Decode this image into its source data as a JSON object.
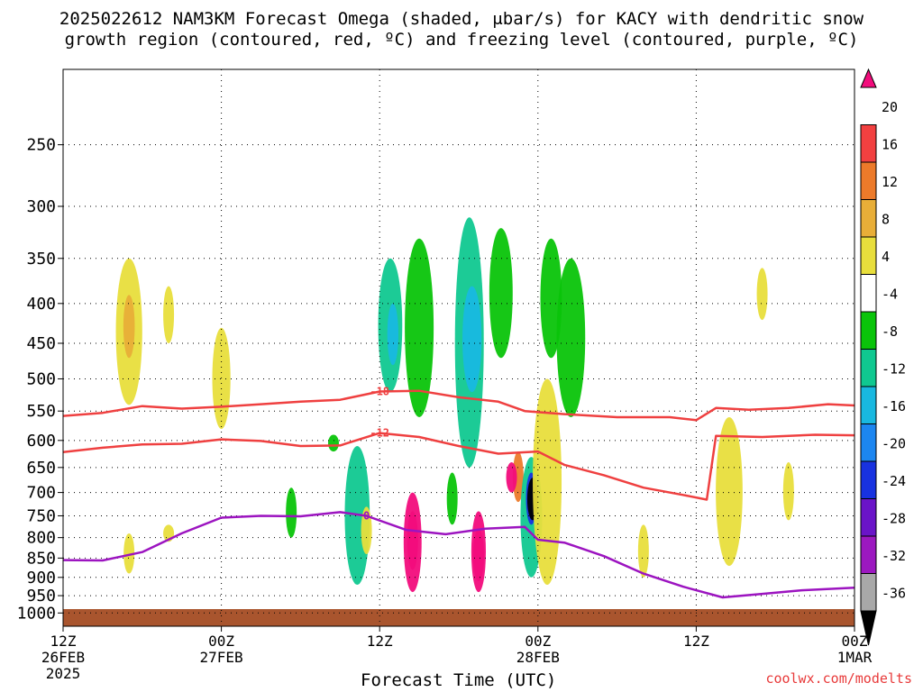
{
  "title_line1": "2025022612 NAM3KM Forecast Omega (shaded, μbar/s) for KACY with dendritic snow",
  "title_line2": "growth region (contoured, red, ºC) and freezing level (contoured, purple, ºC)",
  "x_axis_title": "Forecast Time (UTC)",
  "credit": "coolwx.com/modelts",
  "chart_data": {
    "type": "heatmap",
    "title": "2025022612 NAM3KM Forecast Omega (shaded, μbar/s) for KACY with dendritic snow growth region (contoured, red, ºC) and freezing level (contoured, purple, ºC)",
    "xlabel": "Forecast Time (UTC)",
    "ylabel": "",
    "x_range_hours": [
      0,
      60
    ],
    "x_ticks": [
      {
        "hour": 0,
        "lines": [
          "12Z",
          "26FEB",
          "2025"
        ]
      },
      {
        "hour": 12,
        "lines": [
          "00Z",
          "27FEB"
        ]
      },
      {
        "hour": 24,
        "lines": [
          "12Z"
        ]
      },
      {
        "hour": 36,
        "lines": [
          "00Z",
          "28FEB"
        ]
      },
      {
        "hour": 48,
        "lines": [
          "12Z"
        ]
      },
      {
        "hour": 60,
        "lines": [
          "00Z",
          "1MAR"
        ]
      }
    ],
    "y_scale": "log-pressure (hPa), inverted",
    "y_range_hpa": [
      1040,
      200
    ],
    "y_ticks": [
      250,
      300,
      350,
      400,
      450,
      500,
      550,
      600,
      650,
      700,
      750,
      800,
      850,
      900,
      950,
      1000
    ],
    "grid": true,
    "colorbar": {
      "units": "μbar/s",
      "labels": [
        20,
        16,
        12,
        8,
        4,
        -4,
        -8,
        -12,
        -16,
        -20,
        -24,
        -28,
        -32,
        -36
      ],
      "colors": [
        "#f20c7c",
        "#f24040",
        "#ec7a2a",
        "#e8ae38",
        "#e8de3c",
        "#ffffff",
        "#0ac40a",
        "#10c890",
        "#18b8e0",
        "#1c86f0",
        "#1832e0",
        "#6a14c8",
        "#9c18c0",
        "#a8a8a8",
        "#000000"
      ]
    },
    "omega_cells": [
      {
        "hour": 5.0,
        "p_top": 350,
        "p_bot": 540,
        "value": 6
      },
      {
        "hour": 5.0,
        "p_top": 390,
        "p_bot": 470,
        "value": 9
      },
      {
        "hour": 5.0,
        "p_top": 790,
        "p_bot": 890,
        "value": 5
      },
      {
        "hour": 8.0,
        "p_top": 380,
        "p_bot": 450,
        "value": 5
      },
      {
        "hour": 8.0,
        "p_top": 770,
        "p_bot": 810,
        "value": 5
      },
      {
        "hour": 12.0,
        "p_top": 430,
        "p_bot": 580,
        "value": 5
      },
      {
        "hour": 17.3,
        "p_top": 690,
        "p_bot": 800,
        "value": -6
      },
      {
        "hour": 20.5,
        "p_top": 590,
        "p_bot": 620,
        "value": -6
      },
      {
        "hour": 22.3,
        "p_top": 610,
        "p_bot": 920,
        "value": -9
      },
      {
        "hour": 23.0,
        "p_top": 730,
        "p_bot": 840,
        "value": 5
      },
      {
        "hour": 24.8,
        "p_top": 350,
        "p_bot": 520,
        "value": -10
      },
      {
        "hour": 25.0,
        "p_top": 400,
        "p_bot": 480,
        "value": -16
      },
      {
        "hour": 27.0,
        "p_top": 330,
        "p_bot": 560,
        "value": -6
      },
      {
        "hour": 26.5,
        "p_top": 700,
        "p_bot": 940,
        "value": 20
      },
      {
        "hour": 26.5,
        "p_top": 740,
        "p_bot": 880,
        "value": 24
      },
      {
        "hour": 29.5,
        "p_top": 660,
        "p_bot": 770,
        "value": -6
      },
      {
        "hour": 30.8,
        "p_top": 310,
        "p_bot": 650,
        "value": -10
      },
      {
        "hour": 31.0,
        "p_top": 380,
        "p_bot": 520,
        "value": -14
      },
      {
        "hour": 31.5,
        "p_top": 740,
        "p_bot": 940,
        "value": 20
      },
      {
        "hour": 31.5,
        "p_top": 780,
        "p_bot": 910,
        "value": 24
      },
      {
        "hour": 33.2,
        "p_top": 320,
        "p_bot": 470,
        "value": -6
      },
      {
        "hour": 34.5,
        "p_top": 620,
        "p_bot": 720,
        "value": 14
      },
      {
        "hour": 34.0,
        "p_top": 640,
        "p_bot": 700,
        "value": 22
      },
      {
        "hour": 35.5,
        "p_top": 630,
        "p_bot": 900,
        "value": -12
      },
      {
        "hour": 35.5,
        "p_top": 660,
        "p_bot": 770,
        "value": -24
      },
      {
        "hour": 35.6,
        "p_top": 670,
        "p_bot": 760,
        "value": -38
      },
      {
        "hour": 36.7,
        "p_top": 500,
        "p_bot": 920,
        "value": 6
      },
      {
        "hour": 37.0,
        "p_top": 330,
        "p_bot": 470,
        "value": -7
      },
      {
        "hour": 38.5,
        "p_top": 350,
        "p_bot": 560,
        "value": -8
      },
      {
        "hour": 44.0,
        "p_top": 770,
        "p_bot": 900,
        "value": 5
      },
      {
        "hour": 50.5,
        "p_top": 560,
        "p_bot": 870,
        "value": 5
      },
      {
        "hour": 55.0,
        "p_top": 640,
        "p_bot": 760,
        "value": 5
      },
      {
        "hour": 53.0,
        "p_top": 360,
        "p_bot": 420,
        "value": 5
      }
    ],
    "contours": [
      {
        "label": "-18",
        "color": "#ef4040",
        "series": [
          [
            0,
            558
          ],
          [
            3,
            553
          ],
          [
            6,
            542
          ],
          [
            9,
            546
          ],
          [
            12,
            543
          ],
          [
            15,
            539
          ],
          [
            18,
            535
          ],
          [
            21,
            532
          ],
          [
            24,
            519
          ],
          [
            27,
            518
          ],
          [
            30,
            528
          ],
          [
            33,
            535
          ],
          [
            35,
            550
          ],
          [
            38,
            555
          ],
          [
            42,
            560
          ],
          [
            46,
            560
          ],
          [
            48,
            565
          ],
          [
            49.5,
            545
          ],
          [
            52,
            548
          ],
          [
            55,
            545
          ],
          [
            58,
            539
          ],
          [
            60,
            541
          ]
        ]
      },
      {
        "label": "-12",
        "color": "#ef4040",
        "series": [
          [
            0,
            621
          ],
          [
            3,
            613
          ],
          [
            6,
            607
          ],
          [
            9,
            606
          ],
          [
            12,
            598
          ],
          [
            15,
            601
          ],
          [
            18,
            610
          ],
          [
            21,
            609
          ],
          [
            24,
            587
          ],
          [
            27,
            594
          ],
          [
            30,
            610
          ],
          [
            33,
            624
          ],
          [
            36,
            620
          ],
          [
            38,
            645
          ],
          [
            41,
            665
          ],
          [
            44,
            690
          ],
          [
            47,
            705
          ],
          [
            48.8,
            715
          ],
          [
            49.5,
            592
          ],
          [
            53,
            594
          ],
          [
            57,
            590
          ],
          [
            60,
            591
          ]
        ]
      },
      {
        "label": "0",
        "color": "#9c14c0",
        "series": [
          [
            0,
            855
          ],
          [
            3,
            856
          ],
          [
            6,
            835
          ],
          [
            9,
            790
          ],
          [
            12,
            754
          ],
          [
            15,
            750
          ],
          [
            18,
            751
          ],
          [
            21,
            742
          ],
          [
            23,
            750
          ],
          [
            26,
            782
          ],
          [
            29,
            792
          ],
          [
            32,
            779
          ],
          [
            35,
            775
          ],
          [
            36,
            805
          ],
          [
            38,
            812
          ],
          [
            41,
            845
          ],
          [
            44,
            890
          ],
          [
            47,
            925
          ],
          [
            50,
            955
          ],
          [
            53,
            945
          ],
          [
            56,
            935
          ],
          [
            60,
            928
          ]
        ]
      }
    ]
  }
}
